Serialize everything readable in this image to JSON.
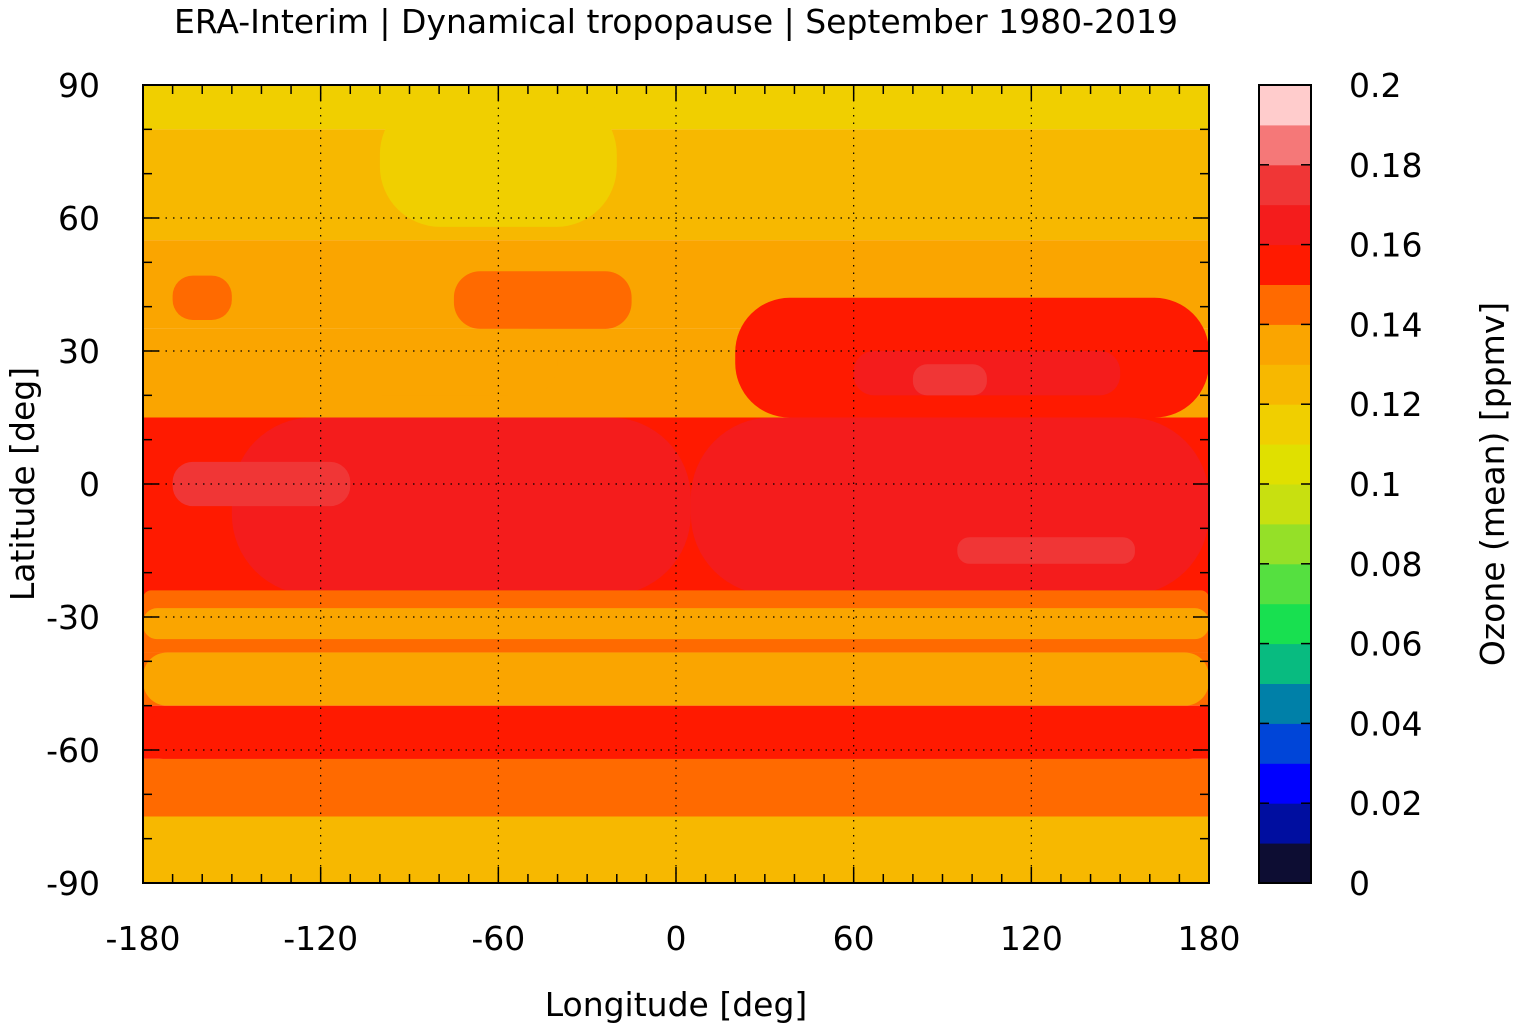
{
  "title": "ERA-Interim | Dynamical tropopause | September 1980-2019",
  "chart_data": {
    "type": "heatmap",
    "title": "ERA-Interim | Dynamical tropopause | September 1980-2019",
    "xlabel": "Longitude [deg]",
    "ylabel": "Latitude [deg]",
    "colorbar_label": "Ozone (mean) [ppmv]",
    "xlim": [
      -180,
      180
    ],
    "ylim": [
      -90,
      90
    ],
    "xticks": [
      "-180",
      "-120",
      "-60",
      "0",
      "60",
      "120",
      "180"
    ],
    "yticks": [
      "90",
      "60",
      "30",
      "0",
      "-30",
      "-60",
      "-90"
    ],
    "grid": true,
    "colorbar": {
      "range": [
        0,
        0.2
      ],
      "ticks": [
        "0.2",
        "0.18",
        "0.16",
        "0.14",
        "0.12",
        "0.1",
        "0.08",
        "0.06",
        "0.04",
        "0.02",
        "0"
      ],
      "levels": [
        {
          "from": 0.0,
          "to": 0.01,
          "color": "#0d0d33"
        },
        {
          "from": 0.01,
          "to": 0.02,
          "color": "#000ea0"
        },
        {
          "from": 0.02,
          "to": 0.03,
          "color": "#0000ff"
        },
        {
          "from": 0.03,
          "to": 0.04,
          "color": "#0045d8"
        },
        {
          "from": 0.04,
          "to": 0.05,
          "color": "#0080a8"
        },
        {
          "from": 0.05,
          "to": 0.06,
          "color": "#08bb80"
        },
        {
          "from": 0.06,
          "to": 0.07,
          "color": "#18e050"
        },
        {
          "from": 0.07,
          "to": 0.08,
          "color": "#55e040"
        },
        {
          "from": 0.08,
          "to": 0.09,
          "color": "#95e028"
        },
        {
          "from": 0.09,
          "to": 0.1,
          "color": "#c8e010"
        },
        {
          "from": 0.1,
          "to": 0.11,
          "color": "#e0e000"
        },
        {
          "from": 0.11,
          "to": 0.12,
          "color": "#f0cf00"
        },
        {
          "from": 0.12,
          "to": 0.13,
          "color": "#f7b800"
        },
        {
          "from": 0.13,
          "to": 0.14,
          "color": "#faa500"
        },
        {
          "from": 0.14,
          "to": 0.15,
          "color": "#ff6a00"
        },
        {
          "from": 0.15,
          "to": 0.16,
          "color": "#ff1a00"
        },
        {
          "from": 0.16,
          "to": 0.17,
          "color": "#f41c1c"
        },
        {
          "from": 0.17,
          "to": 0.18,
          "color": "#f03636"
        },
        {
          "from": 0.18,
          "to": 0.19,
          "color": "#f57878"
        },
        {
          "from": 0.19,
          "to": 0.2,
          "color": "#ffcccc"
        }
      ]
    },
    "zonal_bands": [
      {
        "lat": [
          80,
          90
        ],
        "value": 0.115
      },
      {
        "lat": [
          55,
          80
        ],
        "value": 0.125
      },
      {
        "lat": [
          35,
          55
        ],
        "value": 0.135
      },
      {
        "lat": [
          15,
          35
        ],
        "value": 0.135
      },
      {
        "lat": [
          -25,
          15
        ],
        "value": 0.155
      },
      {
        "lat": [
          -38,
          -25
        ],
        "value": 0.145
      },
      {
        "lat": [
          -50,
          -38
        ],
        "value": 0.145
      },
      {
        "lat": [
          -62,
          -50
        ],
        "value": 0.155
      },
      {
        "lat": [
          -75,
          -62
        ],
        "value": 0.145
      },
      {
        "lat": [
          -90,
          -75
        ],
        "value": 0.125
      }
    ],
    "regions": [
      {
        "lon": [
          -150,
          5
        ],
        "lat": [
          -25,
          15
        ],
        "value": 0.165
      },
      {
        "lon": [
          5,
          180
        ],
        "lat": [
          -25,
          15
        ],
        "value": 0.165
      },
      {
        "lon": [
          -180,
          180
        ],
        "lat": [
          -28,
          -24
        ],
        "value": 0.145
      },
      {
        "lon": [
          -180,
          180
        ],
        "lat": [
          -35,
          -28
        ],
        "value": 0.135
      },
      {
        "lon": [
          -180,
          180
        ],
        "lat": [
          -50,
          -38
        ],
        "value": 0.135
      },
      {
        "lon": [
          -180,
          180
        ],
        "lat": [
          -62,
          -52
        ],
        "value": 0.155
      },
      {
        "lon": [
          -180,
          180
        ],
        "lat": [
          -90,
          -78
        ],
        "value": 0.125
      },
      {
        "lon": [
          20,
          180
        ],
        "lat": [
          15,
          42
        ],
        "value": 0.155
      },
      {
        "lon": [
          60,
          150
        ],
        "lat": [
          20,
          30
        ],
        "value": 0.165
      },
      {
        "lon": [
          -170,
          -150
        ],
        "lat": [
          37,
          47
        ],
        "value": 0.145
      },
      {
        "lon": [
          -75,
          -15
        ],
        "lat": [
          35,
          48
        ],
        "value": 0.145
      },
      {
        "lon": [
          -120,
          -40
        ],
        "lat": [
          20,
          35
        ],
        "value": 0.135
      },
      {
        "lon": [
          -100,
          -20
        ],
        "lat": [
          58,
          88
        ],
        "value": 0.115
      },
      {
        "lon": [
          -170,
          -110
        ],
        "lat": [
          -5,
          5
        ],
        "value": 0.175
      },
      {
        "lon": [
          95,
          155
        ],
        "lat": [
          -18,
          -12
        ],
        "value": 0.175
      },
      {
        "lon": [
          80,
          105
        ],
        "lat": [
          20,
          27
        ],
        "value": 0.175
      }
    ]
  }
}
